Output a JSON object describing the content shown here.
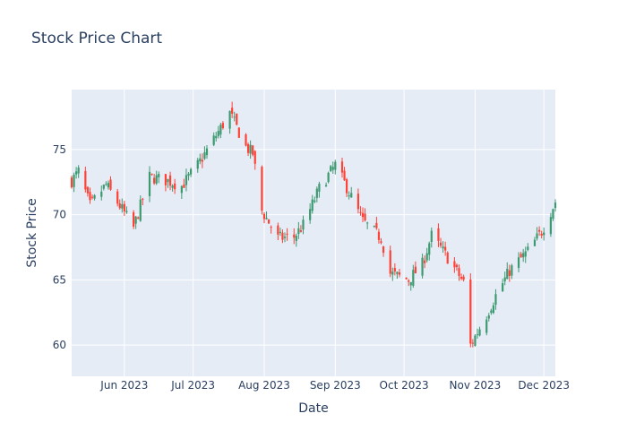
{
  "chart_data": {
    "type": "candlestick",
    "title": "Stock Price Chart",
    "xlabel": "Date",
    "ylabel": "Stock Price",
    "x_range": [
      "2023-05-09",
      "2023-12-06"
    ],
    "ylim": [
      57.6,
      79.6
    ],
    "x_ticks": [
      {
        "date": "2023-06-01",
        "label": "Jun 2023"
      },
      {
        "date": "2023-07-01",
        "label": "Jul 2023"
      },
      {
        "date": "2023-08-01",
        "label": "Aug 2023"
      },
      {
        "date": "2023-09-01",
        "label": "Sep 2023"
      },
      {
        "date": "2023-10-01",
        "label": "Oct 2023"
      },
      {
        "date": "2023-11-01",
        "label": "Nov 2023"
      },
      {
        "date": "2023-12-01",
        "label": "Dec 2023"
      }
    ],
    "y_ticks": [
      60,
      65,
      70,
      75
    ],
    "increasing_color": "#3d9970",
    "decreasing_color": "#ff4136",
    "grid": true,
    "legend": "none",
    "anchor_closes": [
      {
        "date": "2023-05-09",
        "close": 72.6
      },
      {
        "date": "2023-05-12",
        "close": 73.3
      },
      {
        "date": "2023-05-17",
        "close": 70.7
      },
      {
        "date": "2023-05-24",
        "close": 72.3
      },
      {
        "date": "2023-05-31",
        "close": 70.4
      },
      {
        "date": "2023-06-05",
        "close": 69.0
      },
      {
        "date": "2023-06-12",
        "close": 72.9
      },
      {
        "date": "2023-06-20",
        "close": 72.6
      },
      {
        "date": "2023-06-26",
        "close": 72.2
      },
      {
        "date": "2023-07-03",
        "close": 73.8
      },
      {
        "date": "2023-07-10",
        "close": 75.8
      },
      {
        "date": "2023-07-17",
        "close": 77.8
      },
      {
        "date": "2023-07-24",
        "close": 75.2
      },
      {
        "date": "2023-07-27",
        "close": 74.7
      },
      {
        "date": "2023-07-31",
        "close": 70.3
      },
      {
        "date": "2023-08-07",
        "close": 68.2
      },
      {
        "date": "2023-08-14",
        "close": 68.3
      },
      {
        "date": "2023-08-18",
        "close": 69.2
      },
      {
        "date": "2023-08-25",
        "close": 72.0
      },
      {
        "date": "2023-09-01",
        "close": 73.8
      },
      {
        "date": "2023-09-06",
        "close": 72.1
      },
      {
        "date": "2023-09-13",
        "close": 69.5
      },
      {
        "date": "2023-09-21",
        "close": 68.2
      },
      {
        "date": "2023-09-25",
        "close": 65.5
      },
      {
        "date": "2023-10-03",
        "close": 65.0
      },
      {
        "date": "2023-10-09",
        "close": 66.2
      },
      {
        "date": "2023-10-13",
        "close": 68.4
      },
      {
        "date": "2023-10-20",
        "close": 66.7
      },
      {
        "date": "2023-10-27",
        "close": 64.8
      },
      {
        "date": "2023-10-30",
        "close": 60.0
      },
      {
        "date": "2023-11-06",
        "close": 62.3
      },
      {
        "date": "2023-11-10",
        "close": 63.8
      },
      {
        "date": "2023-11-16",
        "close": 65.7
      },
      {
        "date": "2023-11-24",
        "close": 67.2
      },
      {
        "date": "2023-11-30",
        "close": 68.7
      },
      {
        "date": "2023-12-06",
        "close": 71.0
      }
    ]
  }
}
